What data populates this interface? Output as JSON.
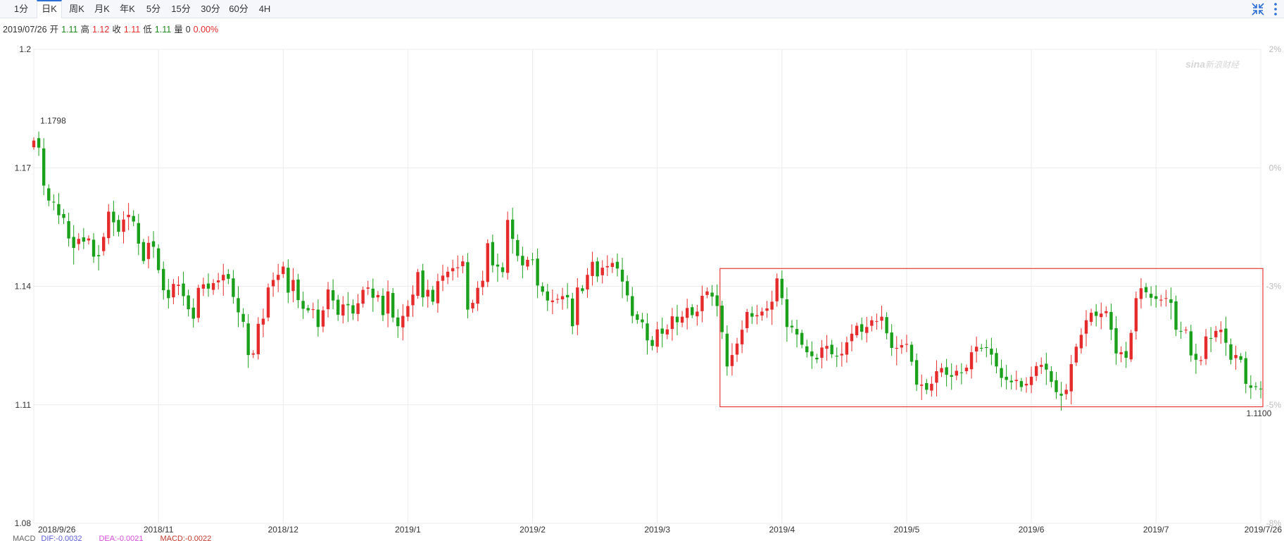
{
  "tabs": [
    {
      "label": "1分",
      "active": false
    },
    {
      "label": "日K",
      "active": true
    },
    {
      "label": "周K",
      "active": false
    },
    {
      "label": "月K",
      "active": false
    },
    {
      "label": "年K",
      "active": false
    },
    {
      "label": "5分",
      "active": false
    },
    {
      "label": "15分",
      "active": false
    },
    {
      "label": "30分",
      "active": false
    },
    {
      "label": "60分",
      "active": false
    },
    {
      "label": "4H",
      "active": false
    }
  ],
  "toolbar": {
    "shrink_icon": "shrink-arrows-icon",
    "menu_icon": "vertical-dots-icon"
  },
  "info": {
    "date": "2019/07/26",
    "open_label": "开",
    "open": "1.11",
    "high_label": "高",
    "high": "1.12",
    "close_label": "收",
    "close": "1.11",
    "low_label": "低",
    "low": "1.11",
    "vol_label": "量",
    "vol": "0",
    "change": "0.00%"
  },
  "watermark": {
    "logo": "sina",
    "text": "新浪财经"
  },
  "colors": {
    "up": "#e52b2b",
    "down": "#1aa01a",
    "grid": "#ececec",
    "box": "#e53935",
    "axis_text": "#333333",
    "pct_text": "#bbbbbb"
  },
  "macd": {
    "title": "MACD",
    "dif_label": "DIF:",
    "dif": "-0.0032",
    "dea_label": "DEA:",
    "dea": "-0.0021",
    "macd_label": "MACD:",
    "macd": "-0.0022"
  },
  "chart_data": {
    "type": "candlestick",
    "yticks": [
      "1.2",
      "1.17",
      "1.14",
      "1.11",
      "1.08"
    ],
    "ytick_values": [
      1.2,
      1.17,
      1.14,
      1.11,
      1.08
    ],
    "pct_ticks": [
      "2%",
      "0%",
      "-3%",
      "-5%",
      "-8%"
    ],
    "pct_values": [
      2,
      0,
      -3,
      -5,
      -8
    ],
    "ylim": [
      1.08,
      1.2
    ],
    "xticks": [
      "2018/9/26",
      "2018/11",
      "2018/12",
      "2019/1",
      "2019/2",
      "2019/3",
      "2019/4",
      "2019/5",
      "2019/6",
      "2019/7",
      "2019/7/26"
    ],
    "xtick_index": [
      0,
      25,
      50,
      75,
      100,
      125,
      150,
      175,
      200,
      225,
      250
    ],
    "max_label": "1.1798",
    "max_index": 1,
    "min_label": "1.1100",
    "min_index": 249,
    "highlight_range": {
      "start_index": 138,
      "end_index": 251,
      "low": 1.1095,
      "high": 1.1445
    },
    "closes": [
      1.1769,
      1.1751,
      1.1655,
      1.1617,
      1.1613,
      1.158,
      1.1573,
      1.1521,
      1.1497,
      1.152,
      1.1513,
      1.1521,
      1.1475,
      1.1476,
      1.1525,
      1.1589,
      1.1562,
      1.1538,
      1.1569,
      1.1581,
      1.1564,
      1.1508,
      1.1464,
      1.151,
      1.15,
      1.1441,
      1.139,
      1.137,
      1.1406,
      1.1404,
      1.1375,
      1.1342,
      1.1318,
      1.1396,
      1.1405,
      1.1394,
      1.1408,
      1.1415,
      1.1429,
      1.1419,
      1.1373,
      1.1334,
      1.131,
      1.1226,
      1.123,
      1.1305,
      1.1318,
      1.1397,
      1.1416,
      1.1429,
      1.145,
      1.1384,
      1.1416,
      1.1365,
      1.1343,
      1.1339,
      1.1342,
      1.1297,
      1.1339,
      1.1392,
      1.1364,
      1.1328,
      1.1354,
      1.1352,
      1.1331,
      1.1357,
      1.1391,
      1.1397,
      1.1371,
      1.1378,
      1.1327,
      1.1387,
      1.1321,
      1.1299,
      1.1325,
      1.135,
      1.1379,
      1.1436,
      1.1372,
      1.1391,
      1.1361,
      1.1413,
      1.1427,
      1.1437,
      1.1446,
      1.1448,
      1.1463,
      1.1341,
      1.1358,
      1.1396,
      1.1414,
      1.1509,
      1.1453,
      1.145,
      1.1436,
      1.1568,
      1.152,
      1.1477,
      1.1453,
      1.1467,
      1.1467,
      1.1402,
      1.1386,
      1.1364,
      1.1364,
      1.1368,
      1.1375,
      1.1372,
      1.1299,
      1.1397,
      1.1388,
      1.1429,
      1.1462,
      1.1425,
      1.1447,
      1.1451,
      1.1459,
      1.1445,
      1.1412,
      1.1377,
      1.1325,
      1.1315,
      1.1309,
      1.1263,
      1.1249,
      1.1291,
      1.128,
      1.1291,
      1.1324,
      1.1309,
      1.1323,
      1.1345,
      1.1327,
      1.1336,
      1.1376,
      1.1387,
      1.1374,
      1.135,
      1.1284,
      1.1197,
      1.1226,
      1.1255,
      1.129,
      1.1335,
      1.1323,
      1.1327,
      1.1336,
      1.1344,
      1.1361,
      1.142,
      1.137,
      1.1297,
      1.1296,
      1.1278,
      1.1252,
      1.1233,
      1.1223,
      1.1215,
      1.1245,
      1.1249,
      1.1228,
      1.1222,
      1.1229,
      1.1258,
      1.128,
      1.13,
      1.1285,
      1.1297,
      1.1314,
      1.1312,
      1.1323,
      1.1281,
      1.1244,
      1.1244,
      1.1251,
      1.1254,
      1.1209,
      1.1151,
      1.1151,
      1.1138,
      1.1153,
      1.1185,
      1.1193,
      1.1176,
      1.1171,
      1.1186,
      1.1181,
      1.1194,
      1.1233,
      1.1247,
      1.1243,
      1.1244,
      1.1227,
      1.1197,
      1.1168,
      1.1163,
      1.1157,
      1.1163,
      1.1145,
      1.1153,
      1.1171,
      1.1198,
      1.1201,
      1.1189,
      1.1158,
      1.1132,
      1.1123,
      1.1138,
      1.1203,
      1.1247,
      1.1277,
      1.1314,
      1.1333,
      1.1325,
      1.1331,
      1.1337,
      1.129,
      1.123,
      1.1233,
      1.1219,
      1.1282,
      1.137,
      1.1395,
      1.1385,
      1.1371,
      1.1368,
      1.1366,
      1.137,
      1.1358,
      1.129,
      1.1286,
      1.129,
      1.1225,
      1.1214,
      1.1213,
      1.1273,
      1.1268,
      1.1287,
      1.129,
      1.1257,
      1.1214,
      1.1226,
      1.1214,
      1.1153,
      1.1143,
      1.1145,
      1.114
    ],
    "opens": [
      1.1752,
      1.1775,
      1.1749,
      1.1648,
      1.1614,
      1.1608,
      1.1583,
      1.1565,
      1.1525,
      1.1507,
      1.1524,
      1.1516,
      1.1518,
      1.1479,
      1.1489,
      1.1522,
      1.1589,
      1.1568,
      1.1538,
      1.1575,
      1.1578,
      1.156,
      1.1512,
      1.1469,
      1.1514,
      1.1496,
      1.1444,
      1.1391,
      1.1372,
      1.1401,
      1.1407,
      1.1377,
      1.1346,
      1.132,
      1.1394,
      1.1407,
      1.1391,
      1.141,
      1.1415,
      1.1431,
      1.142,
      1.137,
      1.133,
      1.1306,
      1.1227,
      1.1228,
      1.1303,
      1.1321,
      1.14,
      1.1416,
      1.1431,
      1.1447,
      1.1388,
      1.1417,
      1.1363,
      1.1345,
      1.134,
      1.1341,
      1.1298,
      1.1342,
      1.139,
      1.1366,
      1.1326,
      1.1355,
      1.1352,
      1.133,
      1.1356,
      1.1394,
      1.1394,
      1.1372,
      1.1376,
      1.1331,
      1.1383,
      1.1321,
      1.1296,
      1.1323,
      1.1352,
      1.1376,
      1.144,
      1.1374,
      1.1391,
      1.1357,
      1.1414,
      1.1423,
      1.1438,
      1.1446,
      1.1451,
      1.1461,
      1.1344,
      1.1356,
      1.1398,
      1.1411,
      1.1512,
      1.1455,
      1.1448,
      1.1434,
      1.1569,
      1.1517,
      1.1477,
      1.145,
      1.1468,
      1.147,
      1.14,
      1.1387,
      1.136,
      1.1366,
      1.1367,
      1.1378,
      1.1369,
      1.1302,
      1.1395,
      1.1392,
      1.1426,
      1.1463,
      1.1428,
      1.1448,
      1.1449,
      1.1462,
      1.1442,
      1.1413,
      1.1375,
      1.1329,
      1.1316,
      1.1306,
      1.1264,
      1.1247,
      1.1293,
      1.1278,
      1.1292,
      1.1323,
      1.1308,
      1.132,
      1.1347,
      1.1324,
      1.1337,
      1.1378,
      1.1384,
      1.1377,
      1.1351,
      1.128,
      1.1198,
      1.1227,
      1.1253,
      1.1294,
      1.1332,
      1.1324,
      1.1326,
      1.1338,
      1.1341,
      1.1362,
      1.1419,
      1.1367,
      1.13,
      1.1292,
      1.1282,
      1.1248,
      1.1235,
      1.1219,
      1.1219,
      1.1242,
      1.1252,
      1.1224,
      1.1225,
      1.1227,
      1.1261,
      1.1276,
      1.1304,
      1.1282,
      1.13,
      1.1311,
      1.1313,
      1.1322,
      1.1283,
      1.1242,
      1.1245,
      1.1252,
      1.1252,
      1.1213,
      1.1148,
      1.1155,
      1.1136,
      1.1156,
      1.1182,
      1.1195,
      1.1175,
      1.1174,
      1.1182,
      1.1185,
      1.119,
      1.1235,
      1.1244,
      1.1246,
      1.1242,
      1.1231,
      1.1193,
      1.1171,
      1.1161,
      1.116,
      1.116,
      1.1149,
      1.115,
      1.1173,
      1.1196,
      1.1204,
      1.1185,
      1.1162,
      1.1128,
      1.1127,
      1.1134,
      1.1207,
      1.1243,
      1.128,
      1.131,
      1.1336,
      1.1322,
      1.1332,
      1.1335,
      1.1294,
      1.1228,
      1.1236,
      1.1215,
      1.1286,
      1.1368,
      1.1398,
      1.1381,
      1.1375,
      1.1364,
      1.1369,
      1.1367,
      1.1362,
      1.1287,
      1.129,
      1.1286,
      1.1229,
      1.1211,
      1.1216,
      1.1269,
      1.1271,
      1.1284,
      1.1293,
      1.1253,
      1.1218,
      1.1223,
      1.1218,
      1.1149,
      1.1147,
      1.1141
    ]
  }
}
